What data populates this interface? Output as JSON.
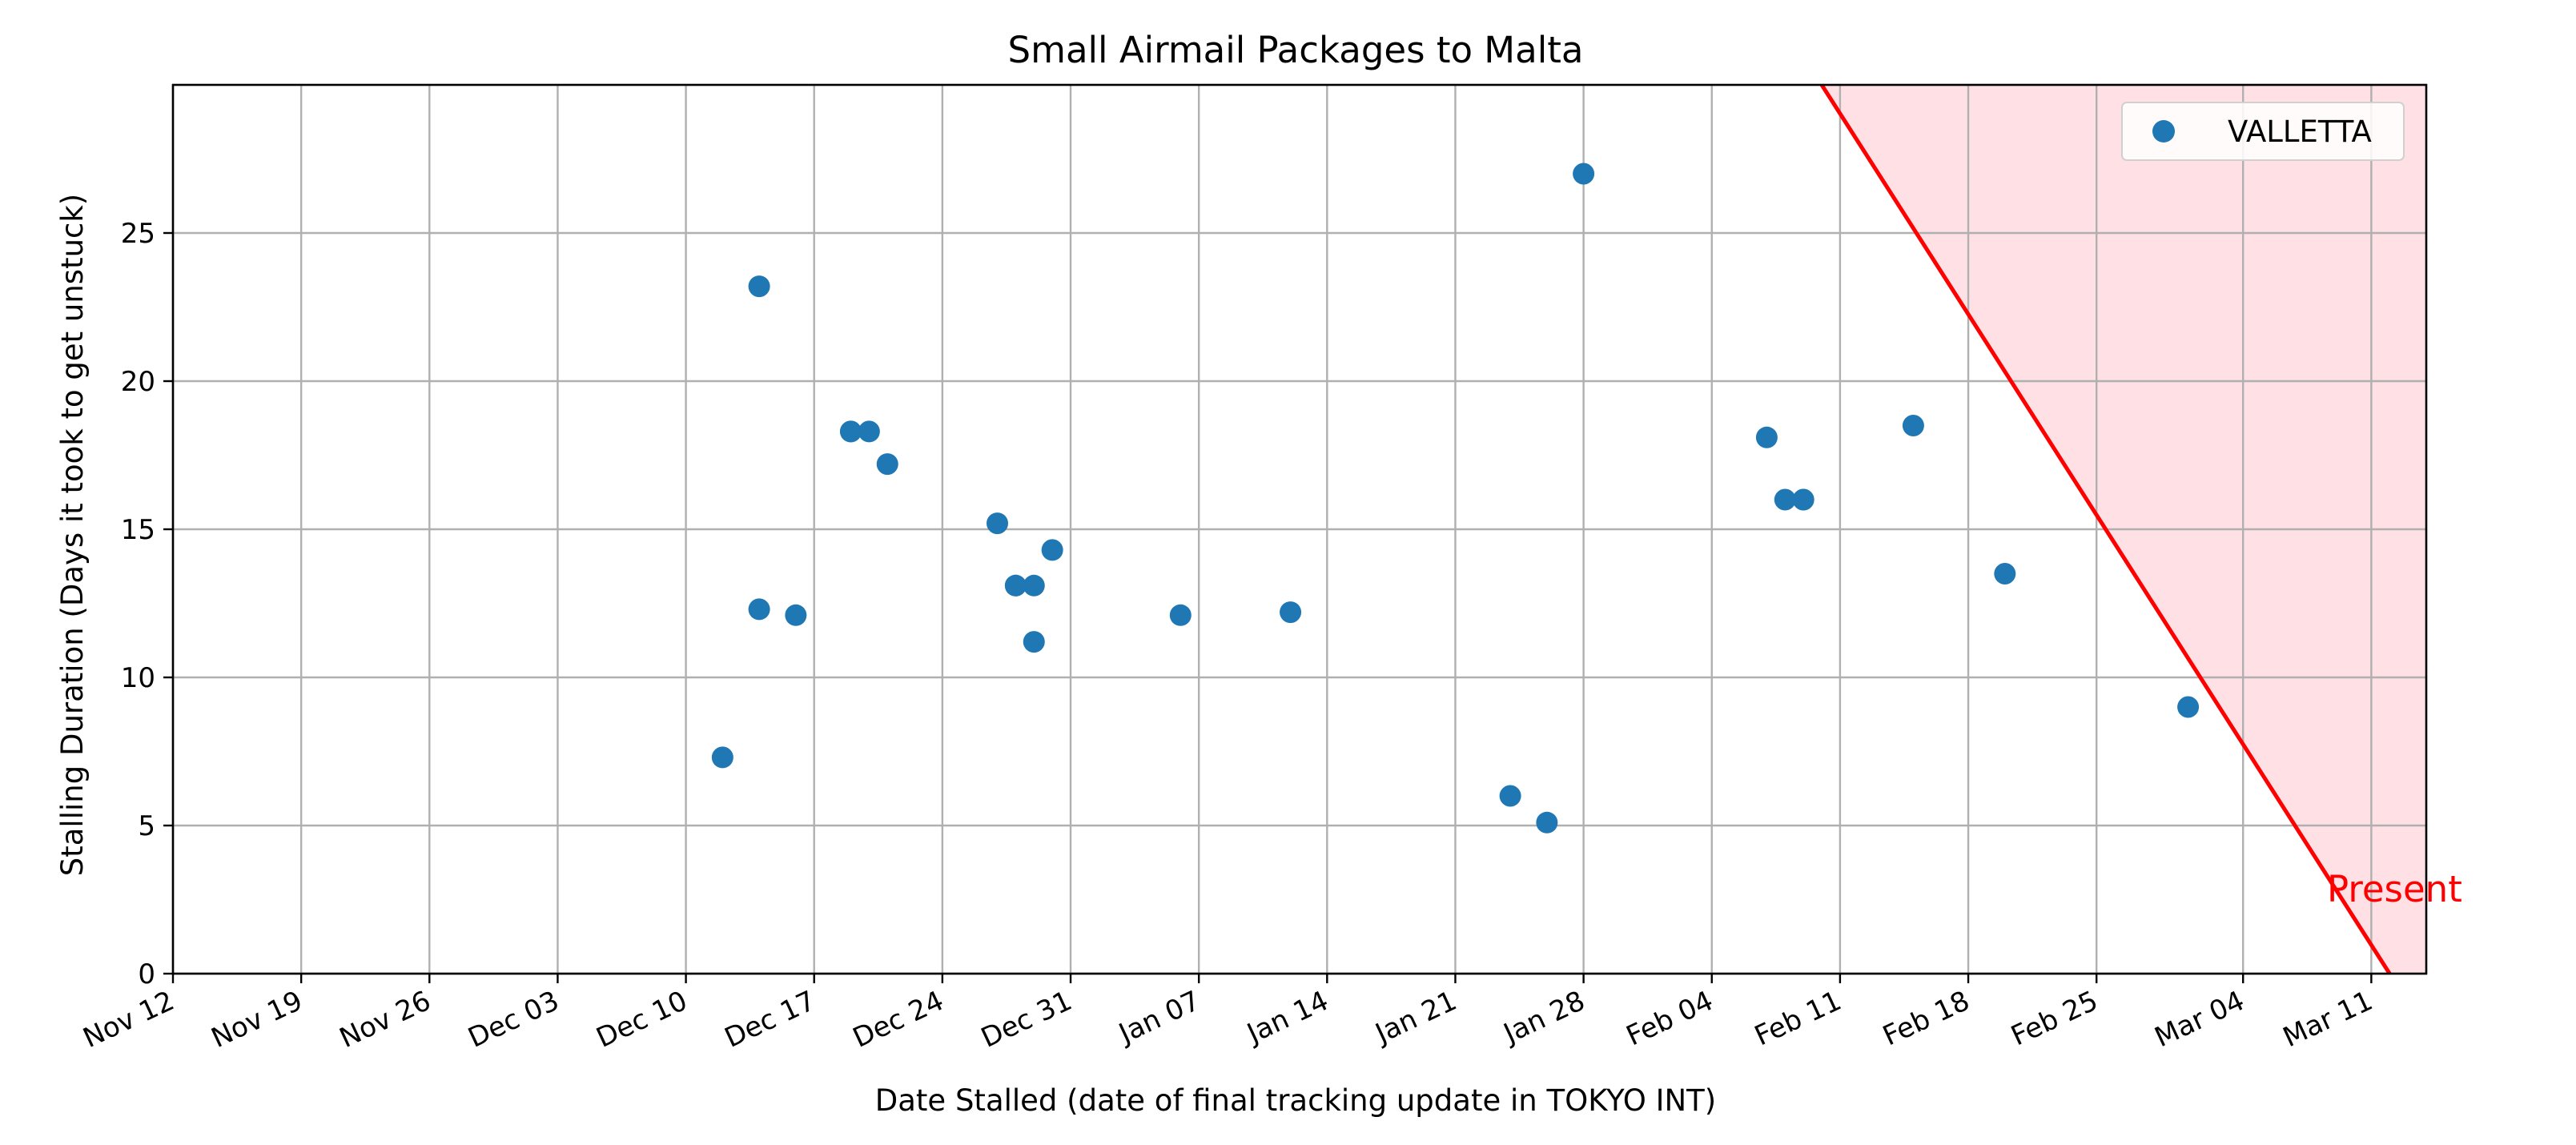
{
  "chart_data": {
    "type": "scatter",
    "title": "Small Airmail Packages to Malta",
    "xlabel": "Date Stalled (date of final tracking update in TOKYO INT)",
    "ylabel": "Stalling Duration (Days it took to get unstuck)",
    "x_axis_type": "date",
    "xlim": [
      "Nov 12",
      "Mar 14"
    ],
    "ylim": [
      0,
      30
    ],
    "x_ticks": [
      "Nov 12",
      "Nov 19",
      "Nov 26",
      "Dec 03",
      "Dec 10",
      "Dec 17",
      "Dec 24",
      "Dec 31",
      "Jan 07",
      "Jan 14",
      "Jan 21",
      "Jan 28",
      "Feb 04",
      "Feb 11",
      "Feb 18",
      "Feb 25",
      "Mar 04",
      "Mar 11"
    ],
    "y_ticks": [
      0,
      5,
      10,
      15,
      20,
      25
    ],
    "grid": true,
    "legend_position": "top-right",
    "colors": {
      "series": "#1f77b4",
      "threshold_line": "#ff0000",
      "shaded_region": "#ffe0e4",
      "grid": "#b0b0b0"
    },
    "series": [
      {
        "name": "VALLETTA",
        "points": [
          {
            "x": "Dec 12",
            "y": 7.3
          },
          {
            "x": "Dec 14",
            "y": 12.3
          },
          {
            "x": "Dec 14",
            "y": 23.2
          },
          {
            "x": "Dec 16",
            "y": 12.1
          },
          {
            "x": "Dec 19",
            "y": 18.3
          },
          {
            "x": "Dec 19",
            "y": 18.3
          },
          {
            "x": "Dec 20",
            "y": 18.3
          },
          {
            "x": "Dec 21",
            "y": 17.2
          },
          {
            "x": "Dec 27",
            "y": 15.2
          },
          {
            "x": "Dec 28",
            "y": 13.1
          },
          {
            "x": "Dec 28",
            "y": 13.1
          },
          {
            "x": "Dec 29",
            "y": 13.1
          },
          {
            "x": "Dec 29",
            "y": 11.2
          },
          {
            "x": "Dec 30",
            "y": 14.3
          },
          {
            "x": "Jan 06",
            "y": 12.1
          },
          {
            "x": "Jan 12",
            "y": 12.2
          },
          {
            "x": "Jan 24",
            "y": 6.0
          },
          {
            "x": "Jan 26",
            "y": 5.1
          },
          {
            "x": "Jan 28",
            "y": 27.0
          },
          {
            "x": "Feb 07",
            "y": 18.1
          },
          {
            "x": "Feb 08",
            "y": 16.0
          },
          {
            "x": "Feb 09",
            "y": 16.0
          },
          {
            "x": "Feb 09",
            "y": 16.0
          },
          {
            "x": "Feb 15",
            "y": 18.5
          },
          {
            "x": "Feb 20",
            "y": 13.5
          },
          {
            "x": "Mar 01",
            "y": 9.0
          }
        ]
      }
    ],
    "threshold_line": {
      "from": {
        "x": "Feb 10",
        "y": 30
      },
      "to": {
        "x": "Mar 12",
        "y": 0
      }
    },
    "annotation": {
      "text": "Present"
    }
  }
}
